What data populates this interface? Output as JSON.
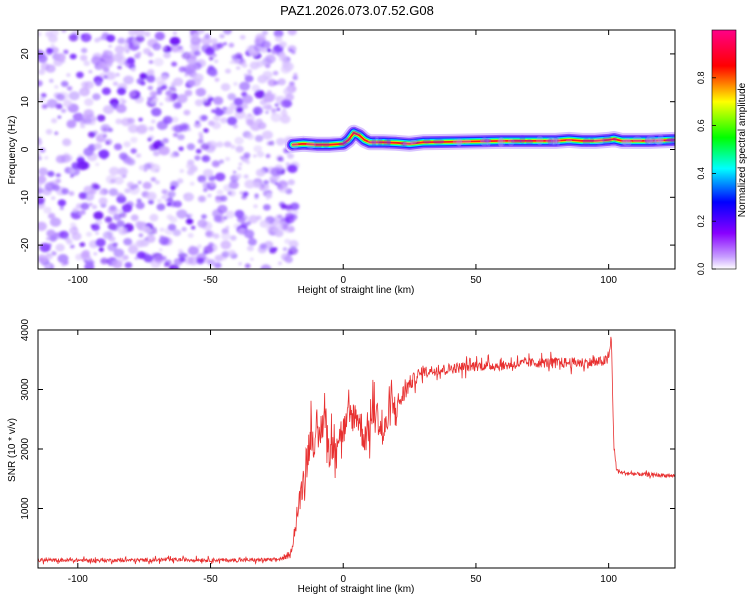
{
  "title": "PAZ1.2026.073.07.52.G08",
  "chart_data": [
    {
      "type": "heatmap",
      "title": "PAZ1.2026.073.07.52.G08",
      "xlabel": "Height of straight line (km)",
      "ylabel": "Frequency (Hz)",
      "xlim": [
        -115,
        125
      ],
      "ylim": [
        -25,
        25
      ],
      "xticks": [
        -100,
        -50,
        0,
        50,
        100
      ],
      "yticks": [
        -20,
        -10,
        0,
        10,
        20
      ],
      "noise_region_x": [
        -115,
        -20
      ],
      "noise_region_level": 0.1,
      "ridge": {
        "x": [
          -19,
          -15,
          -10,
          -5,
          0,
          2,
          4,
          6,
          8,
          10,
          15,
          20,
          25,
          30,
          40,
          50,
          60,
          70,
          80,
          85,
          90,
          95,
          100,
          102,
          105,
          110,
          115,
          120,
          125
        ],
        "freq": [
          1.0,
          1.2,
          1.0,
          1.0,
          1.2,
          2.0,
          3.5,
          3.0,
          2.0,
          1.5,
          1.5,
          1.4,
          1.2,
          1.5,
          1.6,
          1.7,
          1.8,
          1.8,
          1.8,
          2.0,
          1.8,
          1.8,
          2.0,
          2.2,
          1.8,
          1.8,
          1.8,
          1.9,
          2.0
        ],
        "peak_amplitude": 0.95
      },
      "colorbar": {
        "label": "Normalized spectral amplitude",
        "ticks": [
          0.0,
          0.2,
          0.4,
          0.6,
          0.8
        ],
        "range": [
          0,
          1
        ],
        "colors": [
          "#ffffff",
          "#9900ff",
          "#0000ff",
          "#00ffff",
          "#00ff00",
          "#ffff00",
          "#ff0000",
          "#ff00aa"
        ]
      }
    },
    {
      "type": "line",
      "xlabel": "Height of straight line (km)",
      "ylabel": "SNR (10 * v/v)",
      "xlim": [
        -115,
        125
      ],
      "ylim": [
        0,
        4000
      ],
      "xticks": [
        -100,
        -50,
        0,
        50,
        100
      ],
      "yticks": [
        1000,
        2000,
        3000,
        4000
      ],
      "color": "#e83030",
      "series": [
        {
          "name": "SNR",
          "x": [
            -115,
            -100,
            -80,
            -60,
            -40,
            -25,
            -20,
            -18,
            -15,
            -12,
            -10,
            -7,
            -5,
            -3,
            0,
            2,
            5,
            8,
            10,
            12,
            15,
            18,
            20,
            25,
            30,
            40,
            50,
            60,
            70,
            80,
            90,
            95,
            100,
            101,
            102,
            103,
            105,
            110,
            115,
            120,
            125
          ],
          "y": [
            130,
            130,
            130,
            140,
            130,
            140,
            200,
            700,
            1500,
            2300,
            2000,
            2600,
            1900,
            2200,
            2300,
            2500,
            2600,
            2200,
            2400,
            2700,
            2200,
            2700,
            2700,
            3100,
            3300,
            3350,
            3400,
            3400,
            3450,
            3450,
            3450,
            3450,
            3500,
            3900,
            2000,
            1650,
            1600,
            1580,
            1570,
            1560,
            1550
          ],
          "noise": [
            70,
            70,
            70,
            70,
            70,
            70,
            80,
            300,
            600,
            700,
            700,
            700,
            700,
            700,
            600,
            600,
            600,
            700,
            700,
            600,
            600,
            600,
            500,
            300,
            200,
            200,
            200,
            180,
            180,
            200,
            200,
            200,
            200,
            200,
            150,
            80,
            70,
            70,
            70,
            70,
            70
          ]
        }
      ]
    }
  ]
}
